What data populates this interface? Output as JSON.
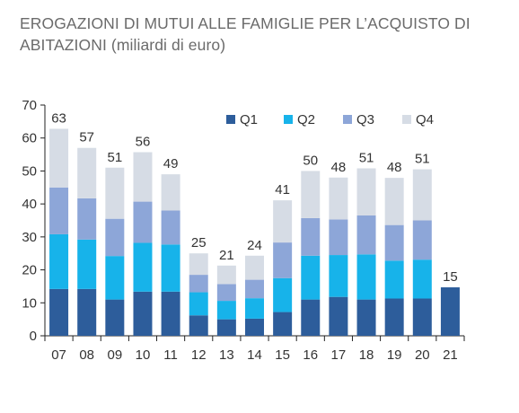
{
  "title_line1": "EROGAZIONI DI MUTUI ALLE FAMIGLIE  PER L’ACQUISTO DI",
  "title_line2": "ABITAZIONI (miliardi di euro)",
  "chart_data": {
    "type": "bar",
    "stacked": true,
    "title": "EROGAZIONI DI MUTUI ALLE FAMIGLIE  PER L’ACQUISTO DI ABITAZIONI (miliardi di euro)",
    "xlabel": "",
    "ylabel": "",
    "ylim": [
      0,
      70
    ],
    "yticks": [
      0,
      10,
      20,
      30,
      40,
      50,
      60,
      70
    ],
    "categories": [
      "07",
      "08",
      "09",
      "10",
      "11",
      "12",
      "13",
      "14",
      "15",
      "16",
      "17",
      "18",
      "19",
      "20",
      "21"
    ],
    "series": [
      {
        "name": "Q1",
        "color": "#2d5d9b",
        "values": [
          14.2,
          14.2,
          11,
          13.4,
          13.4,
          6.2,
          5,
          5.2,
          7.2,
          11,
          11.8,
          11,
          11.3,
          11.3,
          14.7
        ]
      },
      {
        "name": "Q2",
        "color": "#17b3ea",
        "values": [
          16.6,
          15,
          13.2,
          14.8,
          14.3,
          7,
          5.6,
          6.2,
          10.3,
          13.3,
          12.7,
          13.7,
          11.5,
          11.8,
          0
        ]
      },
      {
        "name": "Q3",
        "color": "#8da6d8",
        "values": [
          14.2,
          12.5,
          11.3,
          12.5,
          10.3,
          5.3,
          5.1,
          5.6,
          10.8,
          11.4,
          10.8,
          11.8,
          10.8,
          11.9,
          0
        ]
      },
      {
        "name": "Q4",
        "color": "#d6dce5",
        "values": [
          17.8,
          15.3,
          15.5,
          15,
          11,
          6.5,
          5.6,
          7.3,
          12.8,
          14.3,
          12.7,
          14.3,
          14.3,
          15.5,
          0
        ]
      }
    ],
    "totals": [
      "63",
      "57",
      "51",
      "56",
      "49",
      "25",
      "21",
      "24",
      "41",
      "50",
      "48",
      "51",
      "48",
      "51",
      "15"
    ],
    "legend_position": "top-right",
    "grid": false
  }
}
